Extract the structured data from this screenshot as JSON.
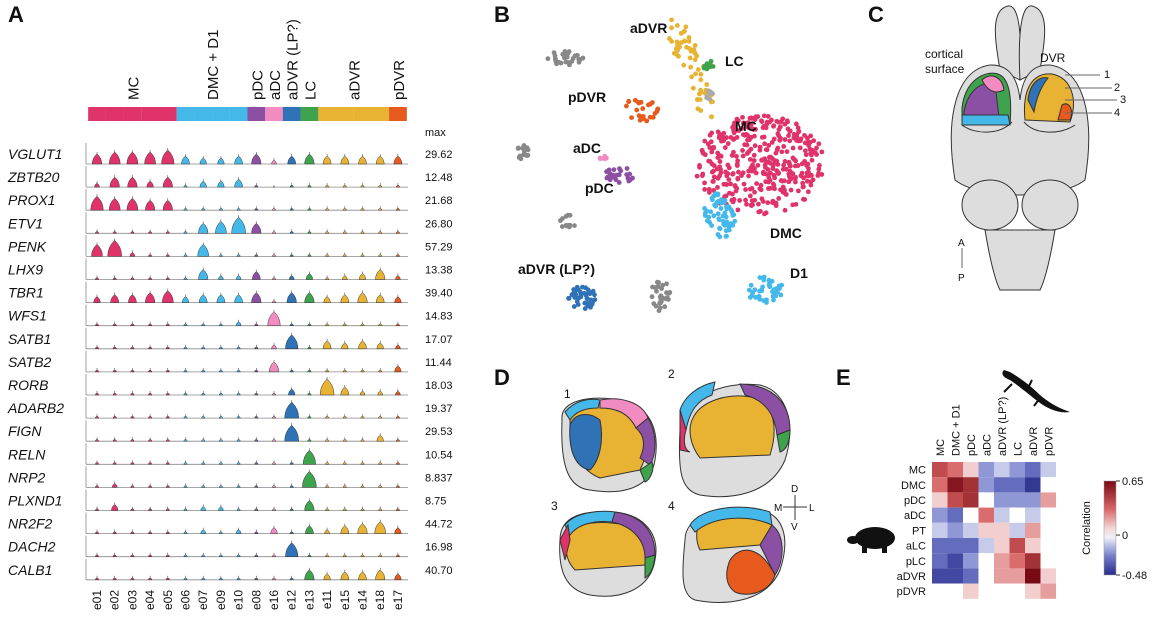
{
  "panels": {
    "A": {
      "label": "A",
      "max_header": "max",
      "groups": [
        {
          "name": "MC",
          "color": "#e0336a"
        },
        {
          "name": "DMC + D1",
          "color": "#45b8ea"
        },
        {
          "name": "pDC",
          "color": "#8b4fa3"
        },
        {
          "name": "aDC",
          "color": "#f28cc0"
        },
        {
          "name": "aDVR (LP?)",
          "color": "#2f72b5"
        },
        {
          "name": "LC",
          "color": "#3fa34d"
        },
        {
          "name": "aDVR",
          "color": "#e8b232"
        },
        {
          "name": "pDVR",
          "color": "#e65a1e"
        }
      ],
      "clusters": [
        "e01",
        "e02",
        "e03",
        "e04",
        "e05",
        "e06",
        "e07",
        "e09",
        "e10",
        "e08",
        "e16",
        "e12",
        "e13",
        "e11",
        "e15",
        "e14",
        "e18",
        "e17"
      ],
      "cluster_group": [
        0,
        0,
        0,
        0,
        0,
        1,
        1,
        1,
        1,
        2,
        3,
        4,
        5,
        6,
        6,
        6,
        6,
        7
      ],
      "genes": [
        "VGLUT1",
        "ZBTB20",
        "PROX1",
        "ETV1",
        "PENK",
        "LHX9",
        "TBR1",
        "WFS1",
        "SATB1",
        "SATB2",
        "RORB",
        "ADARB2",
        "FIGN",
        "RELN",
        "NRP2",
        "PLXND1",
        "NR2F2",
        "DACH2",
        "CALB1"
      ],
      "max": [
        "29.62",
        "12.48",
        "21.68",
        "26.80",
        "57.29",
        "13.38",
        "39.40",
        "14.83",
        "17.07",
        "11.44",
        "18.03",
        "19.37",
        "29.53",
        "10.54",
        "8.837",
        "8.75",
        "44.72",
        "16.98",
        "40.70"
      ],
      "expression": [
        [
          5,
          6,
          6,
          6,
          7,
          4,
          3,
          3,
          4,
          5,
          2,
          4,
          5,
          4,
          4,
          4,
          4,
          4
        ],
        [
          2,
          5,
          5,
          3,
          5,
          1,
          3,
          3,
          4,
          1,
          0,
          1,
          1,
          1,
          1,
          1,
          1,
          1
        ],
        [
          7,
          6,
          6,
          5,
          5,
          1,
          1,
          1,
          1,
          1,
          1,
          1,
          1,
          1,
          1,
          1,
          1,
          1
        ],
        [
          1,
          1,
          1,
          1,
          1,
          1,
          5,
          6,
          8,
          5,
          1,
          1,
          1,
          1,
          1,
          1,
          1,
          1
        ],
        [
          6,
          8,
          2,
          1,
          1,
          1,
          6,
          1,
          1,
          1,
          1,
          1,
          1,
          1,
          1,
          1,
          1,
          1
        ],
        [
          1,
          1,
          1,
          1,
          1,
          1,
          5,
          2,
          2,
          4,
          1,
          2,
          3,
          1,
          2,
          3,
          5,
          2
        ],
        [
          3,
          4,
          4,
          5,
          6,
          3,
          4,
          4,
          4,
          5,
          1,
          5,
          5,
          3,
          4,
          5,
          4,
          3
        ],
        [
          1,
          1,
          1,
          1,
          1,
          1,
          1,
          1,
          2,
          1,
          7,
          1,
          1,
          1,
          1,
          1,
          1,
          1
        ],
        [
          1,
          1,
          1,
          1,
          1,
          1,
          1,
          1,
          1,
          1,
          2,
          7,
          1,
          4,
          3,
          4,
          3,
          2
        ],
        [
          1,
          1,
          1,
          1,
          1,
          1,
          1,
          1,
          1,
          1,
          5,
          1,
          1,
          1,
          1,
          1,
          1,
          3
        ],
        [
          1,
          1,
          1,
          1,
          1,
          1,
          1,
          1,
          1,
          1,
          1,
          3,
          1,
          8,
          4,
          2,
          2,
          2
        ],
        [
          1,
          1,
          1,
          1,
          1,
          1,
          1,
          1,
          1,
          1,
          1,
          8,
          1,
          1,
          1,
          1,
          1,
          1
        ],
        [
          1,
          1,
          1,
          1,
          1,
          1,
          1,
          1,
          1,
          1,
          1,
          8,
          1,
          1,
          1,
          1,
          3,
          1
        ],
        [
          1,
          1,
          1,
          1,
          1,
          1,
          1,
          1,
          1,
          1,
          1,
          1,
          7,
          1,
          1,
          1,
          1,
          1
        ],
        [
          1,
          2,
          1,
          1,
          1,
          1,
          1,
          1,
          1,
          1,
          1,
          1,
          8,
          1,
          1,
          1,
          1,
          1
        ],
        [
          1,
          3,
          1,
          1,
          1,
          1,
          2,
          2,
          1,
          1,
          1,
          1,
          5,
          1,
          1,
          1,
          1,
          1
        ],
        [
          1,
          1,
          1,
          1,
          1,
          1,
          2,
          1,
          2,
          1,
          3,
          1,
          4,
          2,
          4,
          5,
          6,
          3
        ],
        [
          1,
          1,
          1,
          1,
          1,
          1,
          1,
          1,
          1,
          1,
          1,
          7,
          1,
          1,
          1,
          1,
          1,
          1
        ],
        [
          1,
          1,
          1,
          1,
          1,
          1,
          1,
          1,
          1,
          1,
          1,
          1,
          5,
          3,
          4,
          4,
          5,
          3
        ]
      ]
    },
    "B": {
      "label": "B",
      "clusters": [
        "aDVR",
        "LC",
        "pDVR",
        "MC",
        "aDC",
        "pDC",
        "DMC",
        "aDVR (LP?)",
        "D1"
      ]
    },
    "C": {
      "label": "C",
      "cortical": "cortical",
      "surface": "surface",
      "dvr": "DVR",
      "sections": [
        "1",
        "2",
        "3",
        "4"
      ],
      "anterior": "A",
      "posterior": "P"
    },
    "D": {
      "label": "D",
      "sections": [
        "1",
        "2",
        "3",
        "4"
      ],
      "compass": {
        "d": "D",
        "m": "M",
        "l": "L",
        "v": "V"
      }
    },
    "E": {
      "label": "E",
      "rows": [
        "MC",
        "DMC",
        "pDC",
        "aDC",
        "PT",
        "aLC",
        "pLC",
        "aDVR",
        "pDVR"
      ],
      "cols": [
        "MC",
        "DMC + D1",
        "pDC",
        "aDC",
        "aDVR (LP?)",
        "LC",
        "aDVR",
        "pDVR"
      ],
      "matrix": [
        [
          0.4,
          0.3,
          0.1,
          -0.2,
          -0.1,
          -0.2,
          -0.3,
          -0.1
        ],
        [
          0.3,
          0.6,
          0.5,
          -0.2,
          -0.3,
          -0.3,
          -0.45,
          0
        ],
        [
          0.1,
          0.4,
          0.5,
          0,
          -0.2,
          -0.2,
          -0.2,
          0.2
        ],
        [
          -0.2,
          -0.3,
          0,
          0.3,
          -0.1,
          0,
          -0.1,
          0
        ],
        [
          -0.1,
          -0.2,
          -0.1,
          0.1,
          0.1,
          -0.1,
          0.2,
          0
        ],
        [
          -0.3,
          -0.3,
          -0.3,
          -0.1,
          0.1,
          0.4,
          0.1,
          0
        ],
        [
          -0.3,
          -0.4,
          -0.2,
          0,
          0.2,
          0.3,
          0.5,
          0
        ],
        [
          -0.4,
          -0.4,
          -0.3,
          0,
          0.2,
          0.2,
          0.65,
          0.1
        ],
        [
          0,
          0,
          0.1,
          0,
          0,
          0,
          0.1,
          0.2
        ]
      ],
      "colorbar_label": "Correlation",
      "clim": [
        -0.48,
        0.65
      ],
      "cticks": [
        0.65,
        0,
        -0.48
      ]
    }
  }
}
